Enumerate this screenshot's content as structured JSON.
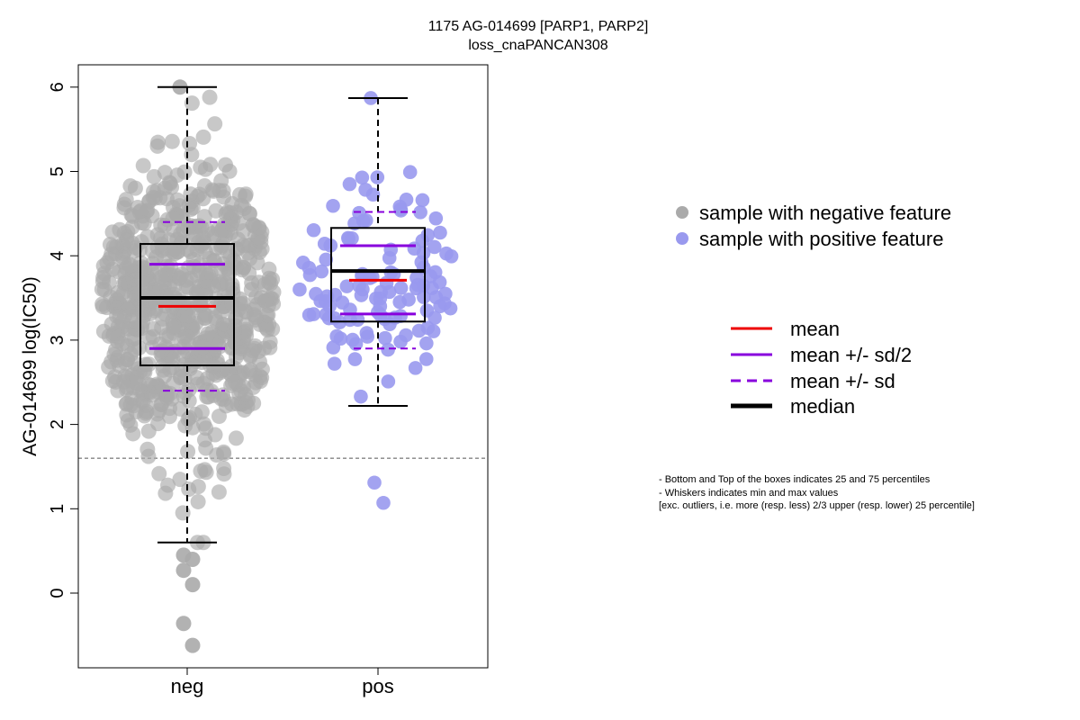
{
  "chart_data": {
    "type": "boxplot-beeswarm",
    "title": "1175 AG-014699 [PARP1, PARP2]",
    "subtitle": "loss_cnaPANCAN308",
    "ylabel": "AG-014699 log(IC50)",
    "xlabel": "",
    "ylim": [
      -0.8,
      6.25
    ],
    "yticks": [
      0,
      1,
      2,
      3,
      4,
      5,
      6
    ],
    "categories": [
      "neg",
      "pos"
    ],
    "threshold_line": 1.6,
    "groups": [
      {
        "category": "neg",
        "color": "#aaaaaa",
        "n_points": 780,
        "whisker_low": 0.6,
        "q1": 2.7,
        "median": 3.5,
        "q3": 4.14,
        "whisker_high": 6.0,
        "mean": 3.4,
        "mean_plus_sd_half": 3.9,
        "mean_minus_sd_half": 2.9,
        "mean_plus_sd": 4.4,
        "mean_minus_sd": 2.4,
        "outliers": [
          0.45,
          0.4,
          0.27,
          0.1,
          -0.36,
          -0.62
        ]
      },
      {
        "category": "pos",
        "color": "#9999ee",
        "n_points": 120,
        "whisker_low": 2.22,
        "q1": 3.22,
        "median": 3.82,
        "q3": 4.33,
        "whisker_high": 5.87,
        "mean": 3.71,
        "mean_plus_sd_half": 4.12,
        "mean_minus_sd_half": 3.31,
        "mean_plus_sd": 4.52,
        "mean_minus_sd": 2.9,
        "outliers": [
          1.31,
          1.07
        ]
      }
    ]
  },
  "legend": {
    "samples": [
      {
        "label": "sample with negative feature",
        "color": "#aaaaaa"
      },
      {
        "label": "sample with positive feature",
        "color": "#9999ee"
      }
    ],
    "lines": [
      {
        "label": "mean",
        "color": "#ee0000",
        "style": "solid"
      },
      {
        "label": "mean +/- sd/2",
        "color": "#8800dd",
        "style": "solid"
      },
      {
        "label": "mean +/- sd",
        "color": "#8800dd",
        "style": "dashed"
      },
      {
        "label": "median",
        "color": "#000000",
        "style": "solid-thick"
      }
    ]
  },
  "notes": [
    "- Bottom and Top of the boxes indicates 25 and 75 percentiles",
    "- Whiskers indicates min and max values",
    "[exc. outliers, i.e. more (resp. less) 2/3 upper (resp. lower) 25 percentile]"
  ]
}
